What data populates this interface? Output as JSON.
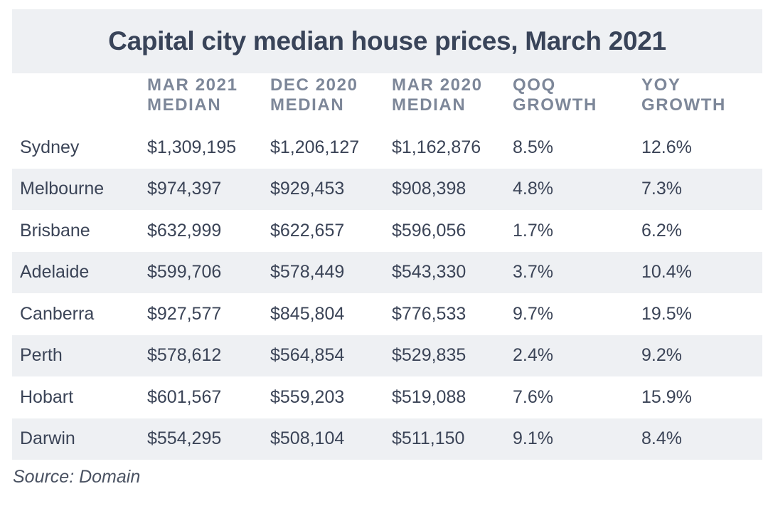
{
  "chart_data": {
    "type": "table",
    "title": "Capital city median house prices, March 2021",
    "columns": [
      {
        "line1": "",
        "line2": ""
      },
      {
        "line1": "MAR 2021",
        "line2": "MEDIAN"
      },
      {
        "line1": "DEC 2020",
        "line2": "MEDIAN"
      },
      {
        "line1": "MAR 2020",
        "line2": "MEDIAN"
      },
      {
        "line1": "QOQ",
        "line2": "GROWTH"
      },
      {
        "line1": "YOY",
        "line2": "GROWTH"
      }
    ],
    "rows": [
      [
        "Sydney",
        "$1,309,195",
        "$1,206,127",
        "$1,162,876",
        "8.5%",
        "12.6%"
      ],
      [
        "Melbourne",
        "$974,397",
        "$929,453",
        "$908,398",
        "4.8%",
        "7.3%"
      ],
      [
        "Brisbane",
        "$632,999",
        "$622,657",
        "$596,056",
        "1.7%",
        "6.2%"
      ],
      [
        "Adelaide",
        "$599,706",
        "$578,449",
        "$543,330",
        "3.7%",
        "10.4%"
      ],
      [
        "Canberra",
        "$927,577",
        "$845,804",
        "$776,533",
        "9.7%",
        "19.5%"
      ],
      [
        "Perth",
        "$578,612",
        "$564,854",
        "$529,835",
        "2.4%",
        "9.2%"
      ],
      [
        "Hobart",
        "$601,567",
        "$559,203",
        "$519,088",
        "7.6%",
        "15.9%"
      ],
      [
        "Darwin",
        "$554,295",
        "$508,104",
        "$511,150",
        "9.1%",
        "8.4%"
      ]
    ],
    "source": "Source: Domain",
    "colors": {
      "title": "#394459",
      "header": "#7d8799",
      "cell": "#3b4457",
      "band": "#eef0f3"
    }
  }
}
